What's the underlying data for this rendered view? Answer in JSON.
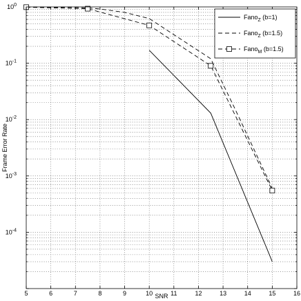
{
  "chart_data": {
    "type": "line",
    "xlabel": "SNR",
    "ylabel": "Frame Error Rate",
    "xlim": [
      5,
      16
    ],
    "ylim": [
      1e-05,
      1
    ],
    "yscale": "log",
    "grid": true,
    "legend_position": "top-right",
    "x_ticks": [
      5,
      6,
      7,
      8,
      9,
      10,
      11,
      12,
      13,
      14,
      15,
      16
    ],
    "y_ticks": [
      {
        "value": 1,
        "base": "10",
        "exp": "0"
      },
      {
        "value": 0.1,
        "base": "10",
        "exp": "-1"
      },
      {
        "value": 0.01,
        "base": "10",
        "exp": "-2"
      },
      {
        "value": 0.001,
        "base": "10",
        "exp": "-3"
      },
      {
        "value": 0.0001,
        "base": "10",
        "exp": "-4"
      }
    ],
    "series": [
      {
        "legend_main": "Fano",
        "legend_sub": "Z",
        "legend_rest": " (b=1)",
        "style": "solid",
        "marker": "none",
        "x": [
          10,
          12.5,
          15
        ],
        "y": [
          0.17,
          0.013,
          3e-05
        ]
      },
      {
        "legend_main": "Fano",
        "legend_sub": "Z",
        "legend_rest": " (b=1.5)",
        "style": "dashed",
        "marker": "none",
        "x": [
          5,
          6,
          7,
          7.5,
          8,
          9,
          10,
          12.5,
          13.5,
          15
        ],
        "y": [
          0.99,
          0.99,
          0.98,
          0.96,
          0.92,
          0.8,
          0.62,
          0.12,
          0.015,
          0.0006
        ]
      },
      {
        "legend_main": "Fano",
        "legend_sub": "M",
        "legend_rest": " (b=1.5)",
        "style": "dashed",
        "marker": "square",
        "x": [
          5,
          7.5,
          10,
          12.5,
          15
        ],
        "y": [
          0.99,
          0.93,
          0.47,
          0.09,
          0.00055
        ]
      }
    ]
  }
}
